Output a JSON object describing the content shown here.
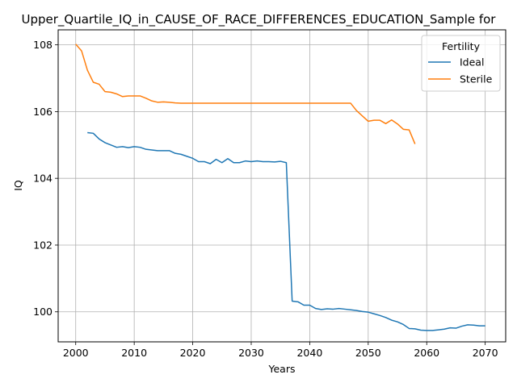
{
  "chart_data": {
    "type": "line",
    "title": "Upper_Quartile_IQ_in_CAUSE_OF_RACE_DIFFERENCES_EDUCATION_Sample for",
    "xlabel": "Years",
    "ylabel": "IQ",
    "xlim": [
      1997,
      2073.5
    ],
    "ylim": [
      99.1,
      108.45
    ],
    "xticks": [
      2000,
      2010,
      2020,
      2030,
      2040,
      2050,
      2060,
      2070
    ],
    "yticks": [
      100,
      102,
      104,
      106,
      108
    ],
    "grid": true,
    "legend": {
      "title": "Fertility",
      "placement": "top-right"
    },
    "series": [
      {
        "name": "Ideal",
        "color": "#1f77b4",
        "x": [
          2002,
          2003,
          2004,
          2005,
          2006,
          2007,
          2008,
          2009,
          2010,
          2011,
          2012,
          2013,
          2014,
          2015,
          2016,
          2017,
          2018,
          2019,
          2020,
          2021,
          2022,
          2023,
          2024,
          2025,
          2026,
          2027,
          2028,
          2029,
          2030,
          2031,
          2032,
          2033,
          2034,
          2035,
          2036,
          2037,
          2038,
          2039,
          2040,
          2041,
          2042,
          2043,
          2044,
          2045,
          2046,
          2047,
          2048,
          2049,
          2050,
          2051,
          2052,
          2053,
          2054,
          2055,
          2056,
          2057,
          2058,
          2059,
          2060,
          2061,
          2062,
          2063,
          2064,
          2065,
          2066,
          2067,
          2068,
          2069,
          2070
        ],
        "y": [
          105.37,
          105.35,
          105.18,
          105.07,
          105.0,
          104.93,
          104.95,
          104.92,
          104.95,
          104.93,
          104.87,
          104.85,
          104.83,
          104.83,
          104.83,
          104.75,
          104.72,
          104.66,
          104.6,
          104.5,
          104.5,
          104.44,
          104.57,
          104.47,
          104.59,
          104.47,
          104.47,
          104.52,
          104.5,
          104.52,
          104.5,
          104.5,
          104.49,
          104.51,
          104.47,
          100.32,
          100.3,
          100.2,
          100.2,
          100.1,
          100.07,
          100.09,
          100.08,
          100.1,
          100.08,
          100.06,
          100.04,
          100.01,
          99.99,
          99.94,
          99.89,
          99.83,
          99.75,
          99.7,
          99.62,
          99.5,
          99.49,
          99.45,
          99.44,
          99.44,
          99.46,
          99.48,
          99.52,
          99.51,
          99.57,
          99.61,
          99.6,
          99.58,
          99.58
        ]
      },
      {
        "name": "Sterile",
        "color": "#ff7f0e",
        "x": [
          2000,
          2001,
          2002,
          2003,
          2004,
          2005,
          2006,
          2007,
          2008,
          2009,
          2010,
          2011,
          2012,
          2013,
          2014,
          2015,
          2016,
          2017,
          2018,
          2019,
          2020,
          2021,
          2022,
          2023,
          2024,
          2025,
          2026,
          2027,
          2028,
          2029,
          2030,
          2031,
          2032,
          2033,
          2034,
          2035,
          2036,
          2037,
          2038,
          2039,
          2040,
          2041,
          2042,
          2043,
          2044,
          2045,
          2046,
          2047,
          2048,
          2049,
          2050,
          2051,
          2052,
          2053,
          2054,
          2055,
          2056,
          2057,
          2058
        ],
        "y": [
          108.02,
          107.82,
          107.24,
          106.88,
          106.82,
          106.6,
          106.58,
          106.53,
          106.45,
          106.47,
          106.47,
          106.47,
          106.4,
          106.32,
          106.28,
          106.29,
          106.28,
          106.26,
          106.25,
          106.25,
          106.25,
          106.25,
          106.25,
          106.25,
          106.25,
          106.25,
          106.25,
          106.25,
          106.25,
          106.25,
          106.25,
          106.25,
          106.25,
          106.25,
          106.25,
          106.25,
          106.25,
          106.25,
          106.25,
          106.25,
          106.25,
          106.25,
          106.25,
          106.25,
          106.25,
          106.25,
          106.25,
          106.25,
          106.03,
          105.87,
          105.71,
          105.74,
          105.74,
          105.64,
          105.75,
          105.63,
          105.47,
          105.45,
          105.03
        ]
      }
    ]
  }
}
